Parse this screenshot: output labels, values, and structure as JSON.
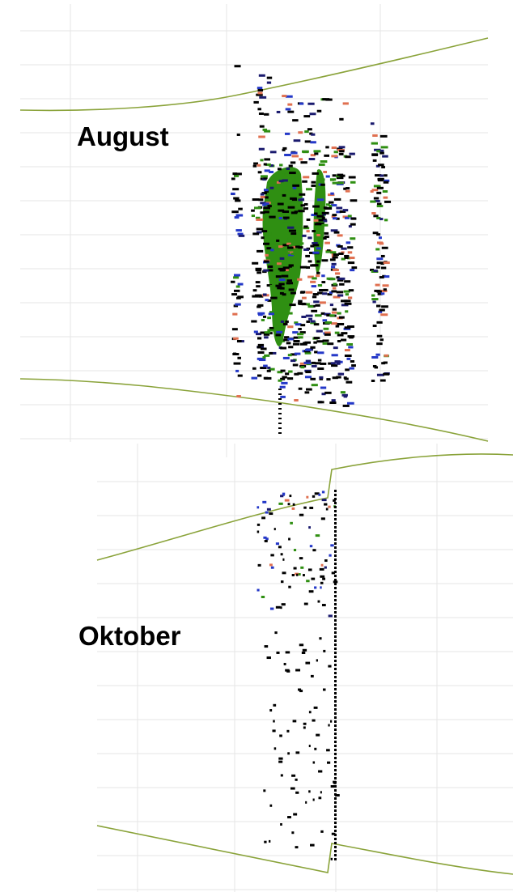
{
  "panels": [
    {
      "label": "August"
    },
    {
      "label": "Oktober"
    }
  ]
}
